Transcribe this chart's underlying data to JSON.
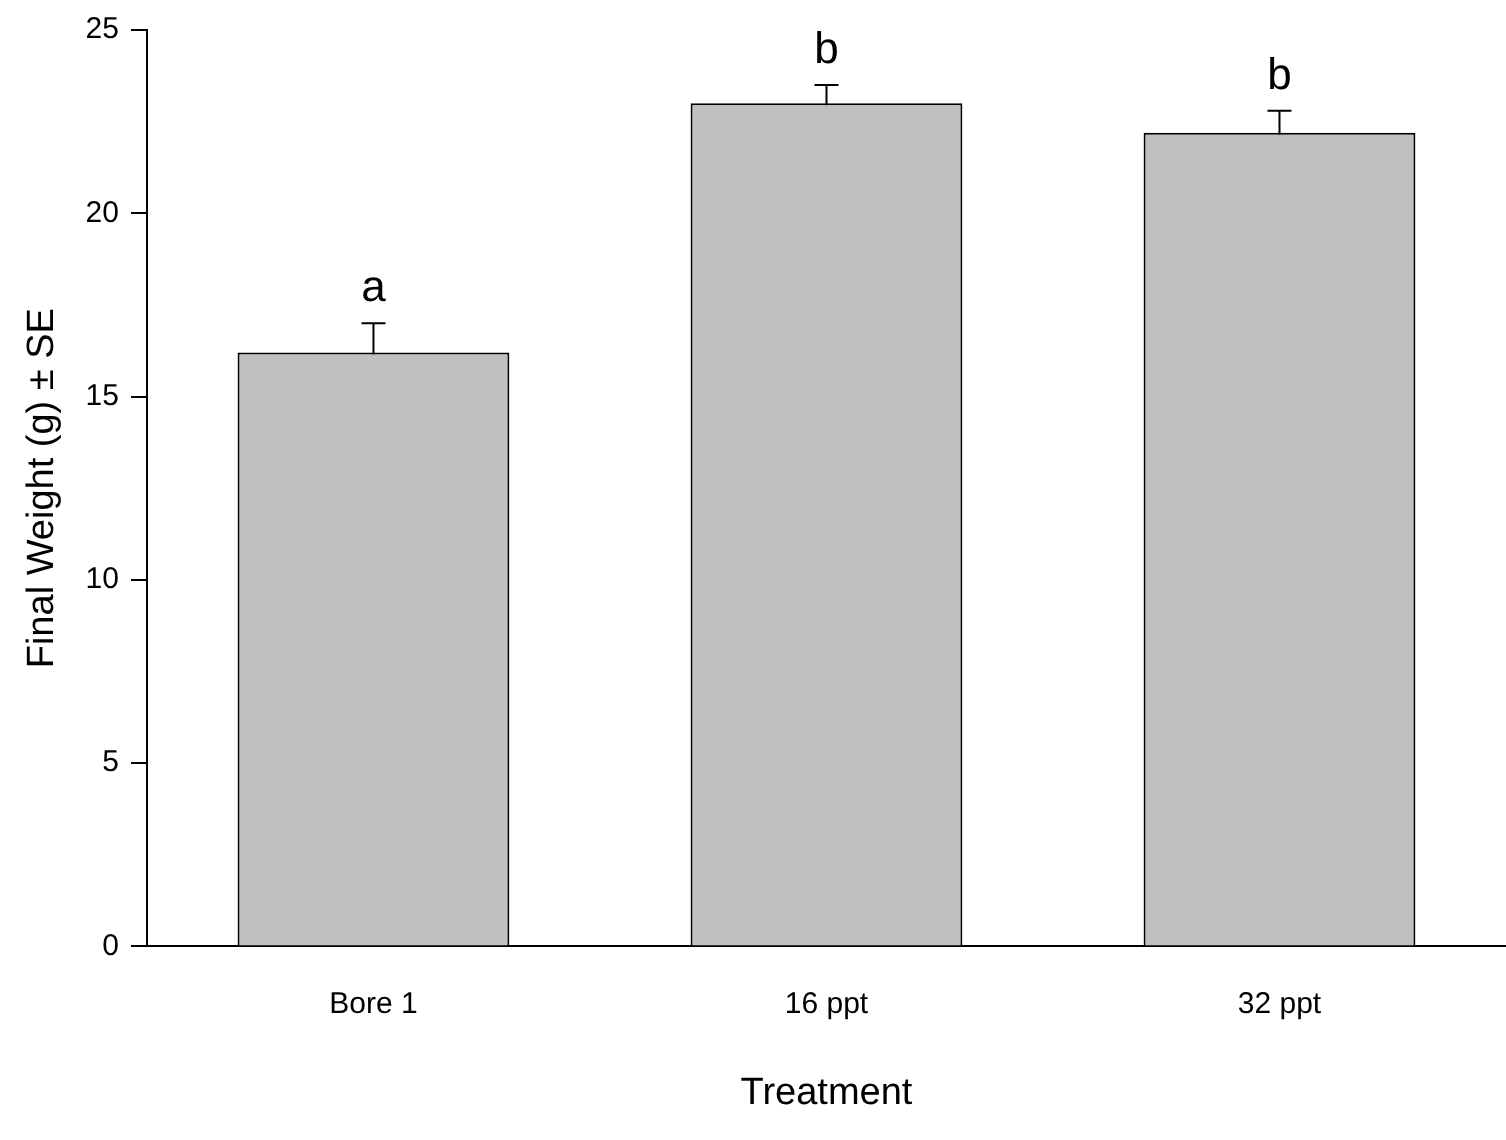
{
  "chart_data": {
    "type": "bar",
    "xlabel": "Treatment",
    "ylabel": "Final Weight (g) ± SE",
    "categories": [
      "Bore 1",
      "16 ppt",
      "32 ppt"
    ],
    "values": [
      16.2,
      23.0,
      22.2
    ],
    "errors": [
      0.8,
      0.5,
      0.6
    ],
    "color": "#c0c0c0",
    "ylim": [
      0,
      25
    ],
    "yticks": [
      0,
      5,
      10,
      15,
      20,
      25
    ],
    "grid": false,
    "legend": false,
    "annotations": [
      {
        "text": "a",
        "x": "Bore 1",
        "y": 17.0
      },
      {
        "text": "b",
        "x": "16 ppt",
        "y": 23.5
      },
      {
        "text": "b",
        "x": "32 ppt",
        "y": 22.8
      }
    ]
  }
}
